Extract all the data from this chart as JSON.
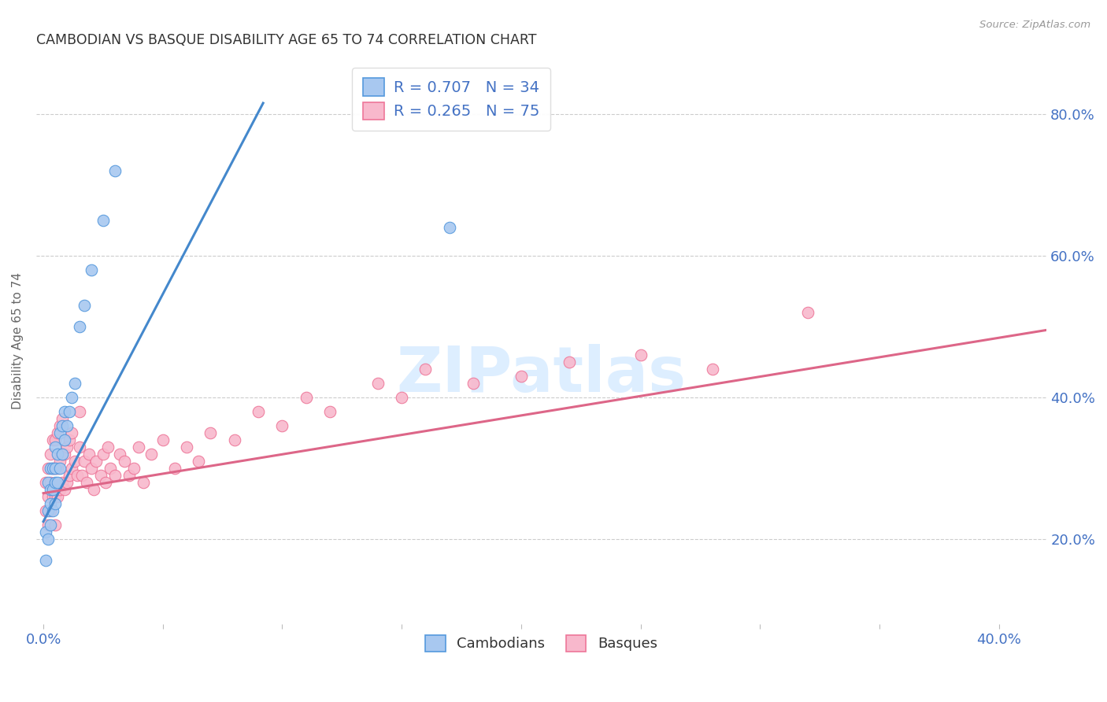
{
  "title": "CAMBODIAN VS BASQUE DISABILITY AGE 65 TO 74 CORRELATION CHART",
  "source": "Source: ZipAtlas.com",
  "ylabel": "Disability Age 65 to 74",
  "xlim": [
    -0.003,
    0.42
  ],
  "ylim": [
    0.08,
    0.88
  ],
  "x_ticks": [
    0.0,
    0.05,
    0.1,
    0.15,
    0.2,
    0.25,
    0.3,
    0.35,
    0.4
  ],
  "x_tick_labels": [
    "0.0%",
    "",
    "",
    "",
    "",
    "",
    "",
    "",
    "40.0%"
  ],
  "y_ticks_right": [
    0.2,
    0.4,
    0.6,
    0.8
  ],
  "y_tick_labels_right": [
    "20.0%",
    "40.0%",
    "60.0%",
    "80.0%"
  ],
  "cambodian_fill": "#a8c8f0",
  "basque_fill": "#f8b8cc",
  "cambodian_edge": "#5599dd",
  "basque_edge": "#ee7799",
  "cambodian_line": "#4488cc",
  "basque_line": "#dd6688",
  "background_color": "#ffffff",
  "grid_color": "#cccccc",
  "title_color": "#333333",
  "axis_color": "#4472c4",
  "watermark_color": "#ddeeff",
  "camb_x": [
    0.001,
    0.001,
    0.002,
    0.002,
    0.002,
    0.003,
    0.003,
    0.003,
    0.003,
    0.004,
    0.004,
    0.004,
    0.005,
    0.005,
    0.005,
    0.005,
    0.006,
    0.006,
    0.007,
    0.007,
    0.008,
    0.008,
    0.009,
    0.009,
    0.01,
    0.011,
    0.012,
    0.013,
    0.015,
    0.017,
    0.02,
    0.025,
    0.03,
    0.17
  ],
  "camb_y": [
    0.17,
    0.21,
    0.2,
    0.24,
    0.28,
    0.22,
    0.25,
    0.27,
    0.3,
    0.24,
    0.27,
    0.3,
    0.25,
    0.28,
    0.3,
    0.33,
    0.28,
    0.32,
    0.3,
    0.35,
    0.32,
    0.36,
    0.34,
    0.38,
    0.36,
    0.38,
    0.4,
    0.42,
    0.5,
    0.53,
    0.58,
    0.65,
    0.72,
    0.64
  ],
  "basq_x": [
    0.001,
    0.001,
    0.002,
    0.002,
    0.002,
    0.003,
    0.003,
    0.003,
    0.004,
    0.004,
    0.004,
    0.005,
    0.005,
    0.005,
    0.005,
    0.006,
    0.006,
    0.006,
    0.007,
    0.007,
    0.007,
    0.008,
    0.008,
    0.008,
    0.009,
    0.009,
    0.01,
    0.01,
    0.011,
    0.011,
    0.012,
    0.012,
    0.013,
    0.014,
    0.015,
    0.015,
    0.016,
    0.017,
    0.018,
    0.019,
    0.02,
    0.021,
    0.022,
    0.024,
    0.025,
    0.026,
    0.027,
    0.028,
    0.03,
    0.032,
    0.034,
    0.036,
    0.038,
    0.04,
    0.042,
    0.045,
    0.05,
    0.055,
    0.06,
    0.065,
    0.07,
    0.08,
    0.09,
    0.1,
    0.11,
    0.12,
    0.14,
    0.15,
    0.16,
    0.18,
    0.2,
    0.22,
    0.25,
    0.28,
    0.32
  ],
  "basq_y": [
    0.24,
    0.28,
    0.22,
    0.26,
    0.3,
    0.24,
    0.28,
    0.32,
    0.26,
    0.3,
    0.34,
    0.22,
    0.26,
    0.3,
    0.34,
    0.26,
    0.3,
    0.35,
    0.27,
    0.31,
    0.36,
    0.28,
    0.32,
    0.37,
    0.27,
    0.32,
    0.28,
    0.33,
    0.29,
    0.34,
    0.3,
    0.35,
    0.31,
    0.29,
    0.33,
    0.38,
    0.29,
    0.31,
    0.28,
    0.32,
    0.3,
    0.27,
    0.31,
    0.29,
    0.32,
    0.28,
    0.33,
    0.3,
    0.29,
    0.32,
    0.31,
    0.29,
    0.3,
    0.33,
    0.28,
    0.32,
    0.34,
    0.3,
    0.33,
    0.31,
    0.35,
    0.34,
    0.38,
    0.36,
    0.4,
    0.38,
    0.42,
    0.4,
    0.44,
    0.42,
    0.43,
    0.45,
    0.46,
    0.44,
    0.52
  ],
  "camb_line_x": [
    0.0,
    0.092
  ],
  "camb_line_y": [
    0.225,
    0.815
  ],
  "basq_line_x": [
    0.0,
    0.42
  ],
  "basq_line_y": [
    0.265,
    0.495
  ]
}
